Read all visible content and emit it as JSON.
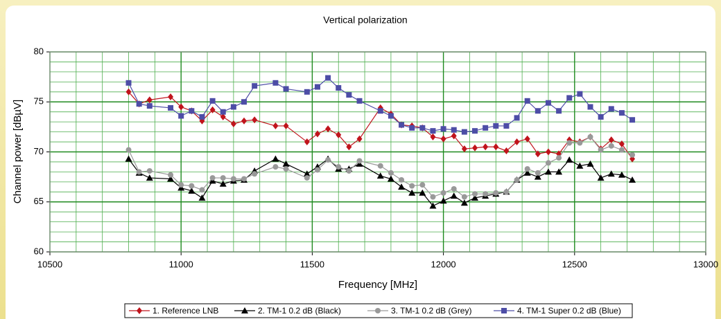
{
  "chart_data": {
    "type": "line",
    "title": "Vertical polarization",
    "xlabel": "Frequency [MHz]",
    "ylabel": "Channel power [dBµV]",
    "x": [
      10800,
      10840,
      10880,
      10960,
      11000,
      11040,
      11080,
      11120,
      11160,
      11200,
      11240,
      11280,
      11360,
      11400,
      11480,
      11520,
      11560,
      11600,
      11640,
      11680,
      11760,
      11800,
      11840,
      11880,
      11920,
      11960,
      12000,
      12040,
      12080,
      12120,
      12160,
      12200,
      12240,
      12280,
      12320,
      12360,
      12400,
      12440,
      12480,
      12520,
      12560,
      12600,
      12640,
      12680,
      12720
    ],
    "series": [
      {
        "name": "1. Reference LNB",
        "color": "#c0141c",
        "marker": "diamond",
        "values": [
          76,
          74.8,
          75.2,
          75.5,
          74.5,
          74.1,
          73.1,
          74.2,
          73.5,
          72.8,
          73.1,
          73.2,
          72.6,
          72.6,
          71,
          71.8,
          72.3,
          71.7,
          70.5,
          71.3,
          74.4,
          73.8,
          72.7,
          72.6,
          72.4,
          71.5,
          71.3,
          71.6,
          70.3,
          70.4,
          70.5,
          70.5,
          70.1,
          71,
          71.3,
          69.8,
          70,
          69.8,
          71.2,
          71,
          71.5,
          70.3,
          71.2,
          70.8,
          69.3
        ]
      },
      {
        "name": "2. TM-1 0.2 dB (Black)",
        "color": "#000000",
        "marker": "triangle",
        "values": [
          69.3,
          67.9,
          67.4,
          67.3,
          66.4,
          66.1,
          65.4,
          67.1,
          66.8,
          67.1,
          67.2,
          68.1,
          69.3,
          68.8,
          67.8,
          68.5,
          69.3,
          68.3,
          68.3,
          68.8,
          67.6,
          67.3,
          66.5,
          65.9,
          65.9,
          64.6,
          65.1,
          65.6,
          64.9,
          65.4,
          65.6,
          65.8,
          66,
          67.2,
          67.9,
          67.5,
          68,
          68,
          69.2,
          68.6,
          68.8,
          67.4,
          67.8,
          67.7,
          67.2
        ]
      },
      {
        "name": "3. TM-1 0.2 dB (Grey)",
        "color": "#999999",
        "marker": "circle",
        "values": [
          70.2,
          68,
          68.1,
          67.7,
          66.7,
          66.6,
          66.2,
          67.4,
          67.4,
          67.3,
          67.3,
          67.8,
          68.5,
          68.3,
          67.4,
          68.2,
          69.2,
          68.5,
          68.1,
          69.1,
          68.6,
          67.9,
          67.2,
          66.6,
          66.7,
          65.5,
          65.9,
          66.3,
          65.5,
          65.8,
          65.8,
          65.9,
          66,
          67.2,
          68.3,
          67.9,
          68.9,
          69.4,
          70.9,
          70.9,
          71.5,
          70.2,
          70.6,
          70.2,
          69.7
        ]
      },
      {
        "name": "4. TM-1 Super 0.2 dB (Blue)",
        "color": "#4d4da6",
        "marker": "square",
        "values": [
          76.9,
          74.8,
          74.6,
          74.4,
          73.6,
          74.1,
          73.5,
          75.1,
          74,
          74.5,
          75,
          76.6,
          76.9,
          76.3,
          76,
          76.5,
          77.4,
          76.4,
          75.7,
          75.1,
          74.1,
          73.6,
          72.7,
          72.4,
          72.4,
          72.1,
          72.3,
          72.2,
          72,
          72.1,
          72.4,
          72.6,
          72.6,
          73.4,
          75.1,
          74.1,
          74.9,
          74.1,
          75.4,
          75.8,
          74.5,
          73.5,
          74.3,
          73.9,
          73.2
        ]
      }
    ],
    "xlim": [
      10500,
      13000
    ],
    "xticks": [
      10500,
      11000,
      11500,
      12000,
      12500,
      13000
    ],
    "ylim": [
      60,
      80
    ],
    "yticks": [
      60,
      65,
      70,
      75,
      80
    ],
    "grid": true,
    "legend": "bottom"
  }
}
